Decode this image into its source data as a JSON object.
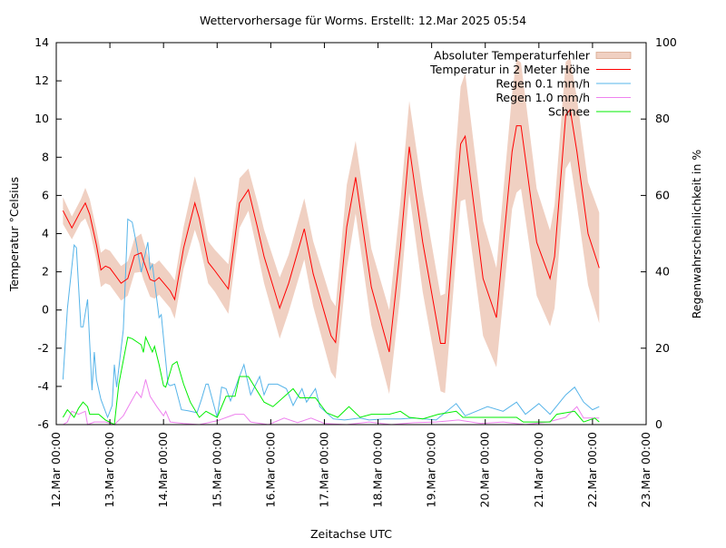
{
  "chart_data": {
    "type": "line",
    "title": "Wettervorhersage für Worms. Erstellt: 12.Mar 2025 05:54",
    "xlabel": "Zeitachse UTC",
    "ylabel": "Temperatur °Celsius",
    "y2label": "Regenwahrscheinlichkeit in %",
    "xlim": [
      "2025-03-12 00:00",
      "2025-03-23 00:00"
    ],
    "ylim": [
      -6,
      14
    ],
    "y2lim": [
      0,
      100
    ],
    "xticks": [
      "12.Mar 00:00",
      "13.Mar 00:00",
      "14.Mar 00:00",
      "15.Mar 00:00",
      "16.Mar 00:00",
      "17.Mar 00:00",
      "18.Mar 00:00",
      "19.Mar 00:00",
      "20.Mar 00:00",
      "21.Mar 00:00",
      "22.Mar 00:00",
      "23.Mar 00:00"
    ],
    "yticks": [
      "-6",
      "-4",
      "-2",
      "0",
      "2",
      "4",
      "6",
      "8",
      "10",
      "12",
      "14"
    ],
    "y2ticks": [
      "0",
      "20",
      "40",
      "60",
      "80",
      "100"
    ],
    "grid": false,
    "legend_position": "top-right",
    "colors": {
      "band": "#f0d0c2",
      "band_border": "#d9a88e",
      "temp": "#ff0000",
      "rain01": "#56b4e9",
      "rain10": "#ee82ee",
      "snow": "#00ee00"
    },
    "temperature": {
      "name": "Temperatur in 2 Meter Höhe",
      "band_name": "Absoluter Temperaturfehler",
      "points": [
        [
          "2025-03-12 03:00",
          5.2,
          0.7
        ],
        [
          "2025-03-12 07:00",
          4.3,
          0.6
        ],
        [
          "2025-03-12 11:00",
          5.2,
          0.6
        ],
        [
          "2025-03-12 13:00",
          5.6,
          0.8
        ],
        [
          "2025-03-12 15:00",
          5.0,
          0.8
        ],
        [
          "2025-03-12 18:00",
          3.4,
          0.8
        ],
        [
          "2025-03-12 20:00",
          2.1,
          0.9
        ],
        [
          "2025-03-12 22:00",
          2.3,
          0.9
        ],
        [
          "2025-03-13 00:00",
          2.2,
          0.9
        ],
        [
          "2025-03-13 05:00",
          1.4,
          0.9
        ],
        [
          "2025-03-13 08:00",
          1.65,
          0.9
        ],
        [
          "2025-03-13 11:00",
          2.85,
          0.9
        ],
        [
          "2025-03-13 14:00",
          3.0,
          1.0
        ],
        [
          "2025-03-13 15:00",
          2.6,
          1.0
        ],
        [
          "2025-03-13 18:00",
          1.6,
          0.9
        ],
        [
          "2025-03-13 20:00",
          1.5,
          0.9
        ],
        [
          "2025-03-13 22:00",
          1.7,
          0.9
        ],
        [
          "2025-03-14 03:00",
          1.0,
          0.9
        ],
        [
          "2025-03-14 05:00",
          0.55,
          1.0
        ],
        [
          "2025-03-14 09:00",
          3.25,
          1.1
        ],
        [
          "2025-03-14 14:00",
          5.6,
          1.4
        ],
        [
          "2025-03-14 16:00",
          4.8,
          1.3
        ],
        [
          "2025-03-14 20:00",
          2.5,
          1.1
        ],
        [
          "2025-03-14 23:00",
          2.05,
          1.1
        ],
        [
          "2025-03-15 05:00",
          1.1,
          1.3
        ],
        [
          "2025-03-15 10:00",
          5.6,
          1.3
        ],
        [
          "2025-03-15 14:00",
          6.3,
          1.1
        ],
        [
          "2025-03-15 18:00",
          4.35,
          1.3
        ],
        [
          "2025-03-15 21:00",
          2.8,
          1.4
        ],
        [
          "2025-03-16 04:00",
          0.1,
          1.6
        ],
        [
          "2025-03-16 08:00",
          1.4,
          1.5
        ],
        [
          "2025-03-16 15:00",
          4.25,
          1.6
        ],
        [
          "2025-03-16 19:00",
          1.9,
          1.7
        ],
        [
          "2025-03-17 03:00",
          -1.35,
          1.9
        ],
        [
          "2025-03-17 05:00",
          -1.7,
          1.9
        ],
        [
          "2025-03-17 10:00",
          4.35,
          2.2
        ],
        [
          "2025-03-17 14:00",
          6.95,
          1.9
        ],
        [
          "2025-03-17 21:00",
          1.2,
          2.0
        ],
        [
          "2025-03-18 05:00",
          -2.2,
          2.2
        ],
        [
          "2025-03-18 10:00",
          3.25,
          2.4
        ],
        [
          "2025-03-18 14:00",
          8.55,
          2.4
        ],
        [
          "2025-03-18 20:00",
          3.55,
          2.6
        ],
        [
          "2025-03-19 04:00",
          -1.75,
          2.5
        ],
        [
          "2025-03-19 06:00",
          -1.75,
          2.6
        ],
        [
          "2025-03-19 13:00",
          8.7,
          3.0
        ],
        [
          "2025-03-19 15:00",
          9.1,
          3.3
        ],
        [
          "2025-03-19 23:00",
          1.65,
          3.0
        ],
        [
          "2025-03-20 05:00",
          -0.4,
          2.6
        ],
        [
          "2025-03-20 12:00",
          8.3,
          3.0
        ],
        [
          "2025-03-20 14:00",
          9.65,
          3.5
        ],
        [
          "2025-03-20 16:00",
          9.65,
          3.3
        ],
        [
          "2025-03-20 23:00",
          3.55,
          2.8
        ],
        [
          "2025-03-21 05:00",
          1.65,
          2.5
        ],
        [
          "2025-03-21 07:00",
          2.8,
          2.7
        ],
        [
          "2025-03-21 12:00",
          10.2,
          2.8
        ],
        [
          "2025-03-21 14:00",
          10.5,
          2.7
        ],
        [
          "2025-03-21 17:00",
          8.3,
          2.8
        ],
        [
          "2025-03-21 22:00",
          4.0,
          2.7
        ],
        [
          "2025-03-22 03:00",
          2.2,
          2.9
        ]
      ]
    },
    "series": [
      {
        "name": "Regen 0.1 mm/h",
        "color_key": "rain01",
        "axis": "y2",
        "points": [
          [
            "2025-03-12 03:00",
            11.8
          ],
          [
            "2025-03-12 05:00",
            30.4
          ],
          [
            "2025-03-12 08:00",
            47
          ],
          [
            "2025-03-12 09:00",
            46.3
          ],
          [
            "2025-03-12 11:00",
            25.6
          ],
          [
            "2025-03-12 12:00",
            25.6
          ],
          [
            "2025-03-12 14:00",
            32.8
          ],
          [
            "2025-03-12 16:00",
            9
          ],
          [
            "2025-03-12 17:00",
            19
          ],
          [
            "2025-03-12 18:00",
            11.8
          ],
          [
            "2025-03-12 20:00",
            6.6
          ],
          [
            "2025-03-12 23:00",
            1.9
          ],
          [
            "2025-03-13 01:00",
            5
          ],
          [
            "2025-03-13 02:00",
            15.7
          ],
          [
            "2025-03-13 03:00",
            9.8
          ],
          [
            "2025-03-13 06:00",
            24.9
          ],
          [
            "2025-03-13 08:00",
            53.8
          ],
          [
            "2025-03-13 10:00",
            53
          ],
          [
            "2025-03-13 12:00",
            47
          ],
          [
            "2025-03-13 14:00",
            39.9
          ],
          [
            "2025-03-13 17:00",
            47.8
          ],
          [
            "2025-03-13 18:00",
            40.7
          ],
          [
            "2025-03-13 19:00",
            41.9
          ],
          [
            "2025-03-13 22:00",
            28
          ],
          [
            "2025-03-13 23:00",
            28.8
          ],
          [
            "2025-03-14 02:00",
            10.6
          ],
          [
            "2025-03-14 03:00",
            10.2
          ],
          [
            "2025-03-14 05:00",
            10.6
          ],
          [
            "2025-03-14 08:00",
            3.9
          ],
          [
            "2025-03-14 11:00",
            3.6
          ],
          [
            "2025-03-14 15:00",
            3.1
          ],
          [
            "2025-03-14 17:00",
            6.6
          ],
          [
            "2025-03-14 19:00",
            10.6
          ],
          [
            "2025-03-14 20:00",
            10.6
          ],
          [
            "2025-03-15 00:00",
            1.9
          ],
          [
            "2025-03-15 02:00",
            9.8
          ],
          [
            "2025-03-15 04:00",
            9.4
          ],
          [
            "2025-03-15 06:00",
            6.2
          ],
          [
            "2025-03-15 10:00",
            12.6
          ],
          [
            "2025-03-15 12:00",
            15.7
          ],
          [
            "2025-03-15 15:00",
            7.8
          ],
          [
            "2025-03-15 19:00",
            12.6
          ],
          [
            "2025-03-15 21:00",
            7.8
          ],
          [
            "2025-03-15 23:00",
            10.6
          ],
          [
            "2025-03-16 03:00",
            10.6
          ],
          [
            "2025-03-16 07:00",
            9.4
          ],
          [
            "2025-03-16 10:00",
            5
          ],
          [
            "2025-03-16 14:00",
            9.4
          ],
          [
            "2025-03-16 16:00",
            5.9
          ],
          [
            "2025-03-16 20:00",
            9.4
          ],
          [
            "2025-03-16 22:00",
            4.7
          ],
          [
            "2025-03-17 04:00",
            1.5
          ],
          [
            "2025-03-17 09:00",
            1.2
          ],
          [
            "2025-03-17 16:00",
            1.7
          ],
          [
            "2025-03-17 20:00",
            1.2
          ],
          [
            "2025-03-18 03:00",
            1.5
          ],
          [
            "2025-03-18 10:00",
            1.5
          ],
          [
            "2025-03-18 16:00",
            1.7
          ],
          [
            "2025-03-19 02:00",
            1.2
          ],
          [
            "2025-03-19 11:00",
            5.5
          ],
          [
            "2025-03-19 15:00",
            2.3
          ],
          [
            "2025-03-20 01:00",
            4.7
          ],
          [
            "2025-03-20 08:00",
            3.5
          ],
          [
            "2025-03-20 14:00",
            5.9
          ],
          [
            "2025-03-20 18:00",
            2.7
          ],
          [
            "2025-03-21 00:00",
            5.5
          ],
          [
            "2025-03-21 05:00",
            2.7
          ],
          [
            "2025-03-21 12:00",
            7.8
          ],
          [
            "2025-03-21 16:00",
            9.8
          ],
          [
            "2025-03-21 20:00",
            5.9
          ],
          [
            "2025-03-22 00:00",
            3.9
          ],
          [
            "2025-03-22 03:00",
            4.7
          ]
        ]
      },
      {
        "name": "Regen 1.0 mm/h",
        "color_key": "rain10",
        "axis": "y2",
        "points": [
          [
            "2025-03-12 03:00",
            0
          ],
          [
            "2025-03-12 05:00",
            0.7
          ],
          [
            "2025-03-12 07:00",
            3.5
          ],
          [
            "2025-03-12 10:00",
            2.7
          ],
          [
            "2025-03-12 13:00",
            3.5
          ],
          [
            "2025-03-12 14:00",
            0
          ],
          [
            "2025-03-12 17:00",
            0.7
          ],
          [
            "2025-03-12 22:00",
            0.7
          ],
          [
            "2025-03-13 02:00",
            0
          ],
          [
            "2025-03-13 06:00",
            2.3
          ],
          [
            "2025-03-13 09:00",
            5.5
          ],
          [
            "2025-03-13 12:00",
            8.6
          ],
          [
            "2025-03-13 14:00",
            7.1
          ],
          [
            "2025-03-13 16:00",
            11.8
          ],
          [
            "2025-03-13 18:00",
            7.4
          ],
          [
            "2025-03-13 21:00",
            4.7
          ],
          [
            "2025-03-14 00:00",
            2.3
          ],
          [
            "2025-03-14 01:00",
            3.5
          ],
          [
            "2025-03-14 03:00",
            0.7
          ],
          [
            "2025-03-14 09:00",
            0.3
          ],
          [
            "2025-03-14 16:00",
            0
          ],
          [
            "2025-03-15 00:00",
            1.0
          ],
          [
            "2025-03-15 08:00",
            2.7
          ],
          [
            "2025-03-15 12:00",
            2.7
          ],
          [
            "2025-03-15 15:00",
            0.7
          ],
          [
            "2025-03-15 23:00",
            0
          ],
          [
            "2025-03-16 06:00",
            1.7
          ],
          [
            "2025-03-16 12:00",
            0.5
          ],
          [
            "2025-03-16 18:00",
            1.7
          ],
          [
            "2025-03-17 00:00",
            0.3
          ],
          [
            "2025-03-17 10:00",
            0
          ],
          [
            "2025-03-17 20:00",
            0.7
          ],
          [
            "2025-03-18 06:00",
            0
          ],
          [
            "2025-03-18 16:00",
            0.5
          ],
          [
            "2025-03-19 02:00",
            0.7
          ],
          [
            "2025-03-19 12:00",
            1.2
          ],
          [
            "2025-03-19 22:00",
            0.3
          ],
          [
            "2025-03-20 08:00",
            0.7
          ],
          [
            "2025-03-20 18:00",
            0
          ],
          [
            "2025-03-21 04:00",
            0.7
          ],
          [
            "2025-03-21 12:00",
            1.9
          ],
          [
            "2025-03-21 17:00",
            4.7
          ],
          [
            "2025-03-21 20:00",
            1.7
          ],
          [
            "2025-03-22 03:00",
            1.7
          ]
        ]
      },
      {
        "name": "Schnee",
        "color_key": "snow",
        "axis": "y2",
        "points": [
          [
            "2025-03-12 03:00",
            1.9
          ],
          [
            "2025-03-12 05:00",
            3.9
          ],
          [
            "2025-03-12 08:00",
            1.9
          ],
          [
            "2025-03-12 10:00",
            4.3
          ],
          [
            "2025-03-12 12:00",
            5.9
          ],
          [
            "2025-03-12 14:00",
            4.7
          ],
          [
            "2025-03-12 15:00",
            2.7
          ],
          [
            "2025-03-12 19:00",
            2.7
          ],
          [
            "2025-03-12 22:00",
            1.2
          ],
          [
            "2025-03-13 02:00",
            0
          ],
          [
            "2025-03-13 04:00",
            10.6
          ],
          [
            "2025-03-13 08:00",
            22.9
          ],
          [
            "2025-03-13 10:00",
            22.5
          ],
          [
            "2025-03-13 14:00",
            20.9
          ],
          [
            "2025-03-13 15:00",
            18.9
          ],
          [
            "2025-03-13 16:00",
            22.9
          ],
          [
            "2025-03-13 19:00",
            19
          ],
          [
            "2025-03-13 20:00",
            20.5
          ],
          [
            "2025-03-13 22:00",
            15.7
          ],
          [
            "2025-03-14 00:00",
            10.2
          ],
          [
            "2025-03-14 01:00",
            9.8
          ],
          [
            "2025-03-14 04:00",
            15.7
          ],
          [
            "2025-03-14 06:00",
            16.5
          ],
          [
            "2025-03-14 09:00",
            10.6
          ],
          [
            "2025-03-14 12:00",
            5.9
          ],
          [
            "2025-03-14 16:00",
            1.9
          ],
          [
            "2025-03-14 19:00",
            3.5
          ],
          [
            "2025-03-15 00:00",
            1.9
          ],
          [
            "2025-03-15 04:00",
            7.4
          ],
          [
            "2025-03-15 08:00",
            7.4
          ],
          [
            "2025-03-15 10:00",
            12.6
          ],
          [
            "2025-03-15 14:00",
            12.6
          ],
          [
            "2025-03-15 21:00",
            5.9
          ],
          [
            "2025-03-16 01:00",
            4.7
          ],
          [
            "2025-03-16 10:00",
            9.4
          ],
          [
            "2025-03-16 13:00",
            7
          ],
          [
            "2025-03-16 20:00",
            7
          ],
          [
            "2025-03-17 01:00",
            3.1
          ],
          [
            "2025-03-17 06:00",
            1.9
          ],
          [
            "2025-03-17 11:00",
            4.7
          ],
          [
            "2025-03-17 16:00",
            1.9
          ],
          [
            "2025-03-17 21:00",
            2.7
          ],
          [
            "2025-03-18 05:00",
            2.7
          ],
          [
            "2025-03-18 10:00",
            3.5
          ],
          [
            "2025-03-18 14:00",
            1.9
          ],
          [
            "2025-03-18 20:00",
            1.5
          ],
          [
            "2025-03-19 03:00",
            2.7
          ],
          [
            "2025-03-19 11:00",
            3.5
          ],
          [
            "2025-03-19 14:00",
            1.9
          ],
          [
            "2025-03-20 14:00",
            1.9
          ],
          [
            "2025-03-20 17:00",
            0.7
          ],
          [
            "2025-03-21 05:00",
            0.7
          ],
          [
            "2025-03-21 08:00",
            2.7
          ],
          [
            "2025-03-21 16:00",
            3.5
          ],
          [
            "2025-03-21 20:00",
            0.7
          ],
          [
            "2025-03-22 01:00",
            1.7
          ],
          [
            "2025-03-22 03:00",
            0.7
          ]
        ]
      }
    ]
  }
}
